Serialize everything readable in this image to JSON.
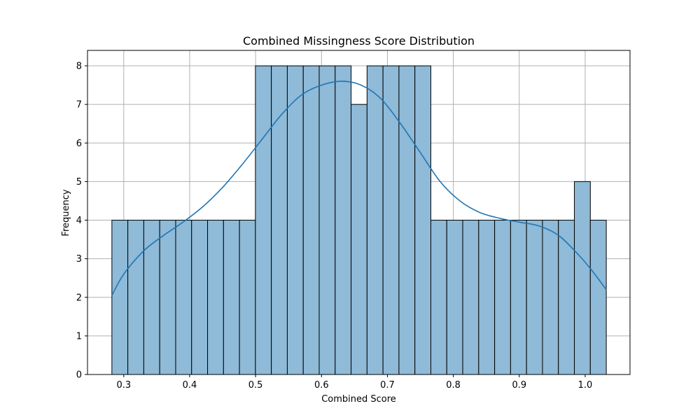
{
  "chart_data": {
    "type": "bar",
    "title": "Combined Missingness Score Distribution",
    "xlabel": "Combined Score",
    "ylabel": "Frequency",
    "xlim": [
      0.245,
      1.068
    ],
    "ylim": [
      0,
      8.4
    ],
    "grid": true,
    "x_ticks": [
      "0.3",
      "0.4",
      "0.5",
      "0.6",
      "0.7",
      "0.8",
      "0.9",
      "1.0"
    ],
    "x_tick_values": [
      0.3,
      0.4,
      0.5,
      0.6,
      0.7,
      0.8,
      0.9,
      1.0
    ],
    "y_ticks": [
      "0",
      "1",
      "2",
      "3",
      "4",
      "5",
      "6",
      "7",
      "8"
    ],
    "y_tick_values": [
      0,
      1,
      2,
      3,
      4,
      5,
      6,
      7,
      8
    ],
    "bin_range": [
      0.282,
      1.032
    ],
    "bin_counts": [
      4,
      4,
      4,
      4,
      4,
      4,
      4,
      4,
      4,
      8,
      8,
      8,
      8,
      8,
      8,
      7,
      8,
      8,
      8,
      8,
      4,
      4,
      4,
      4,
      4,
      4,
      4,
      4,
      4,
      5,
      4
    ],
    "kde": {
      "x": [
        0.282,
        0.3,
        0.33,
        0.36,
        0.39,
        0.42,
        0.45,
        0.48,
        0.51,
        0.54,
        0.57,
        0.6,
        0.63,
        0.66,
        0.69,
        0.72,
        0.75,
        0.78,
        0.81,
        0.84,
        0.87,
        0.9,
        0.93,
        0.96,
        0.99,
        1.01,
        1.032
      ],
      "y": [
        2.05,
        2.6,
        3.2,
        3.6,
        3.95,
        4.35,
        4.85,
        5.45,
        6.1,
        6.75,
        7.25,
        7.5,
        7.6,
        7.5,
        7.15,
        6.5,
        5.75,
        5.0,
        4.5,
        4.2,
        4.05,
        3.95,
        3.85,
        3.6,
        3.1,
        2.7,
        2.2
      ]
    },
    "colors": {
      "bar_fill": "#8fbad8",
      "bar_edge": "#000000",
      "kde_line": "#1f77b4",
      "grid": "#b0b0b0"
    }
  }
}
